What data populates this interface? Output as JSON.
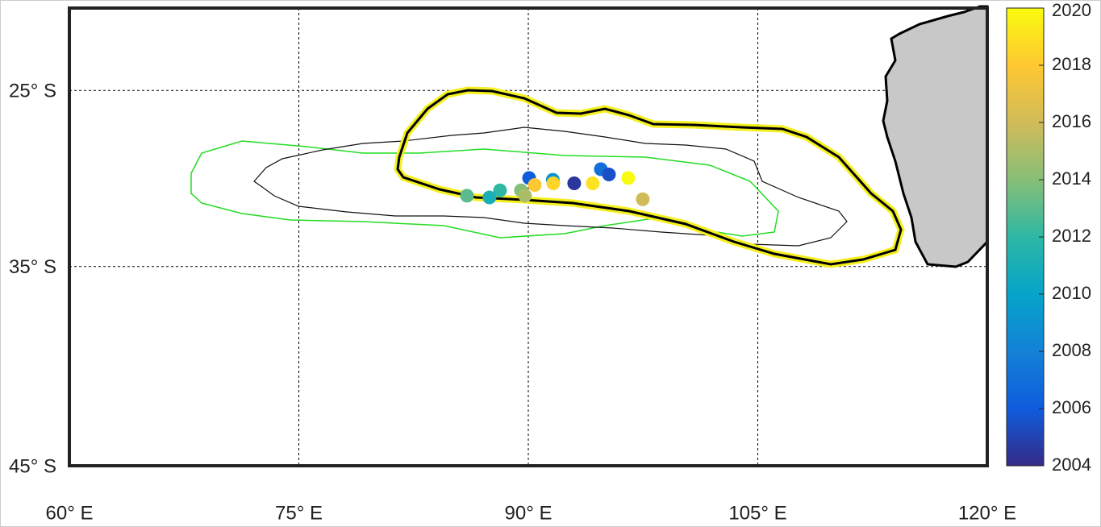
{
  "chart_data": {
    "type": "scatter",
    "series": [
      {
        "x": [
          90.05,
          91.6,
          93.0,
          94.74,
          95.27,
          96.53,
          97.48,
          94.21,
          90.42,
          91.63,
          89.52,
          89.78,
          88.15,
          87.46,
          85.99
        ],
        "y": [
          -30.1,
          -30.2,
          -30.4,
          -29.6,
          -29.9,
          -30.1,
          -31.3,
          -30.4,
          -30.5,
          -30.4,
          -30.8,
          -31.1,
          -30.8,
          -31.2,
          -31.1
        ],
        "values": [
          2006,
          2009,
          2004.5,
          2007,
          2005.5,
          2020,
          2016,
          2019,
          2018,
          2018.5,
          2014,
          2015,
          2012,
          2011,
          2013
        ]
      }
    ],
    "xlim": [
      60,
      120
    ],
    "ylim": [
      -45,
      -20
    ],
    "xticks": [
      {
        "value": 60,
        "label": "60° E"
      },
      {
        "value": 75,
        "label": "75° E"
      },
      {
        "value": 90,
        "label": "90° E"
      },
      {
        "value": 105,
        "label": "105° E"
      },
      {
        "value": 120,
        "label": "120° E"
      }
    ],
    "yticks": [
      {
        "value": -25,
        "label": "25° S"
      },
      {
        "value": -35,
        "label": "35° S"
      },
      {
        "value": -45,
        "label": "45° S"
      }
    ],
    "projection": "mercator",
    "grid": true,
    "colorbar": {
      "lim": [
        2004,
        2020
      ],
      "ticks": [
        2004,
        2006,
        2008,
        2010,
        2012,
        2014,
        2016,
        2018,
        2020
      ],
      "colormap": [
        "#352a87",
        "#0f5cdd",
        "#1481d6",
        "#06a4ca",
        "#2eb7a4",
        "#87bf77",
        "#d1bb59",
        "#fec832",
        "#f9fb0e"
      ]
    }
  }
}
